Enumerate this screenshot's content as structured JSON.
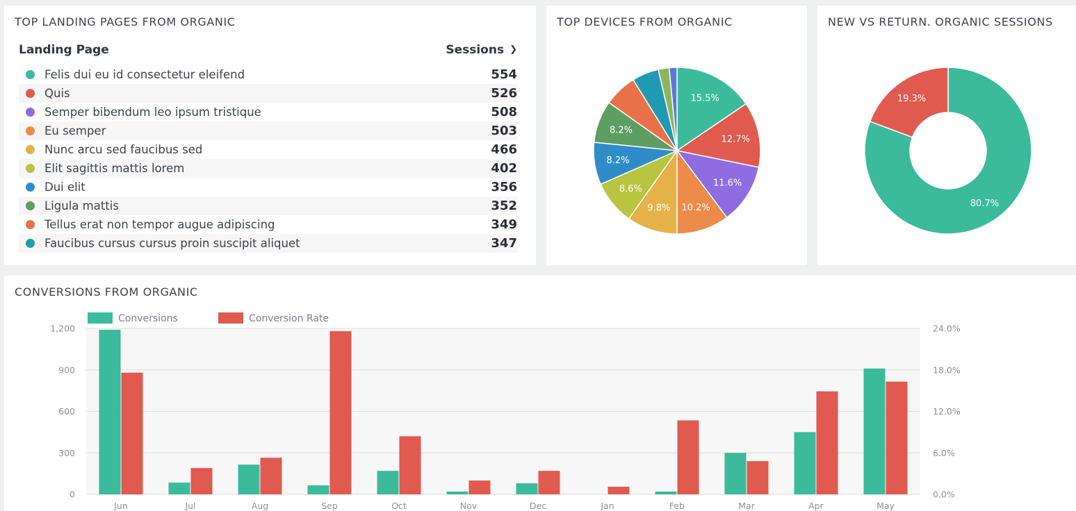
{
  "landing": {
    "title": "TOP LANDING PAGES FROM ORGANIC",
    "col_page": "Landing Page",
    "col_sessions": "Sessions",
    "rows": [
      {
        "label": "Felis dui eu id consectetur eleifend",
        "value": "554",
        "color": "#3bbb9b"
      },
      {
        "label": "Quis",
        "value": "526",
        "color": "#e05a4f"
      },
      {
        "label": "Semper bibendum leo ipsum tristique",
        "value": "508",
        "color": "#8f6ce0"
      },
      {
        "label": "Eu semper",
        "value": "503",
        "color": "#ed8b4a"
      },
      {
        "label": "Nunc arcu sed faucibus sed",
        "value": "466",
        "color": "#e4b248"
      },
      {
        "label": "Elit sagittis mattis lorem",
        "value": "402",
        "color": "#b9c441"
      },
      {
        "label": "Dui elit",
        "value": "356",
        "color": "#2f8cc8"
      },
      {
        "label": "Ligula mattis",
        "value": "352",
        "color": "#5e9e62"
      },
      {
        "label": "Tellus erat non tempor augue adipiscing",
        "value": "349",
        "color": "#e8714a"
      },
      {
        "label": "Faucibus cursus cursus proin suscipit aliquet",
        "value": "347",
        "color": "#1f9ab0"
      }
    ]
  },
  "devices": {
    "title": "TOP DEVICES FROM ORGANIC"
  },
  "newret": {
    "title": "NEW VS RETURN. ORGANIC SESSIONS"
  },
  "conv": {
    "title": "CONVERSIONS FROM ORGANIC"
  },
  "chart_data": [
    {
      "type": "pie",
      "title": "TOP DEVICES FROM ORGANIC",
      "slices": [
        {
          "value": 15.5,
          "label": "15.5%",
          "color": "#3bbb9b"
        },
        {
          "value": 12.7,
          "label": "12.7%",
          "color": "#e05a4f"
        },
        {
          "value": 11.6,
          "label": "11.6%",
          "color": "#8f6ce0"
        },
        {
          "value": 10.2,
          "label": "10.2%",
          "color": "#ed8b4a"
        },
        {
          "value": 9.8,
          "label": "9.8%",
          "color": "#e4b248"
        },
        {
          "value": 8.6,
          "label": "8.6%",
          "color": "#b9c441"
        },
        {
          "value": 8.2,
          "label": "8.2%",
          "color": "#2f8cc8"
        },
        {
          "value": 8.2,
          "label": "8.2%",
          "color": "#5e9e62"
        },
        {
          "value": 6.4,
          "label": "",
          "color": "#e8714a"
        },
        {
          "value": 5.2,
          "label": "",
          "color": "#1f9ab0"
        },
        {
          "value": 2.1,
          "label": "",
          "color": "#8fb55a"
        },
        {
          "value": 1.5,
          "label": "",
          "color": "#5b79d6"
        }
      ]
    },
    {
      "type": "pie",
      "title": "NEW VS RETURN. ORGANIC SESSIONS",
      "donut": true,
      "slices": [
        {
          "value": 80.7,
          "label": "80.7%",
          "color": "#3bbb9b"
        },
        {
          "value": 19.3,
          "label": "19.3%",
          "color": "#e05a4f"
        }
      ]
    },
    {
      "type": "bar",
      "title": "CONVERSIONS FROM ORGANIC",
      "categories": [
        "Jun",
        "Jul",
        "Aug",
        "Sep",
        "Oct",
        "Nov",
        "Dec",
        "Jan",
        "Feb",
        "Mar",
        "Apr",
        "May"
      ],
      "series": [
        {
          "name": "Conversions",
          "axis": "left",
          "color": "#3bbb9b",
          "values": [
            1190,
            85,
            215,
            65,
            170,
            20,
            80,
            0,
            20,
            300,
            450,
            910
          ]
        },
        {
          "name": "Conversion Rate",
          "axis": "right",
          "color": "#e05a4f",
          "values": [
            17.6,
            3.8,
            5.3,
            23.6,
            8.4,
            2.0,
            3.4,
            1.1,
            10.7,
            4.8,
            14.9,
            16.3
          ]
        }
      ],
      "y_left": {
        "ticks": [
          "0",
          "300",
          "600",
          "900",
          "1,200"
        ],
        "ylim": [
          0,
          1200
        ]
      },
      "y_right": {
        "ticks": [
          "0.0%",
          "6.0%",
          "12.0%",
          "18.0%",
          "24.0%"
        ],
        "ylim": [
          0,
          24
        ]
      },
      "legend": "top-left",
      "grid": true
    }
  ]
}
